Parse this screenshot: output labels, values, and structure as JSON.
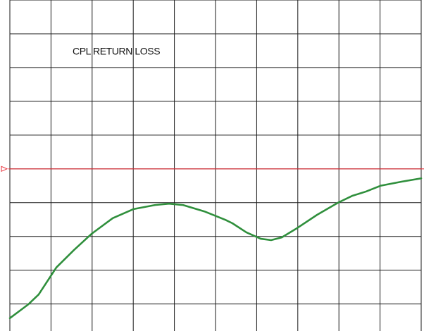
{
  "chart_data": {
    "type": "line",
    "title": "CPL RETURN LOSS",
    "x": [
      0,
      0.45,
      0.7,
      1.13,
      1.56,
      1.99,
      2.5,
      3.01,
      3.53,
      3.87,
      4.21,
      4.73,
      5.24,
      5.41,
      5.75,
      6.1,
      6.35,
      6.61,
      6.95,
      7.47,
      7.98,
      8.32,
      8.66,
      9.01,
      9.52,
      10
    ],
    "series": [
      {
        "color": "#2f8f3c",
        "values": [
          0.58,
          0.99,
          1.28,
          2.08,
          2.6,
          3.08,
          3.54,
          3.81,
          3.93,
          3.97,
          3.93,
          3.74,
          3.49,
          3.39,
          3.12,
          2.93,
          2.89,
          2.97,
          3.22,
          3.64,
          4.0,
          4.2,
          4.33,
          4.5,
          4.62,
          4.72
        ]
      }
    ],
    "xlim": [
      0,
      10
    ],
    "xticks": [
      0,
      1,
      2,
      3,
      4,
      5,
      6,
      7,
      8,
      9,
      10
    ],
    "ylim": [
      0.2,
      10
    ],
    "yticks": [
      1,
      2,
      3,
      4,
      5,
      6,
      7,
      8,
      9,
      10
    ],
    "grid": true,
    "grid_color": "#1a1a1a",
    "reference_line": {
      "value": 5,
      "color": "#e8303a"
    }
  }
}
